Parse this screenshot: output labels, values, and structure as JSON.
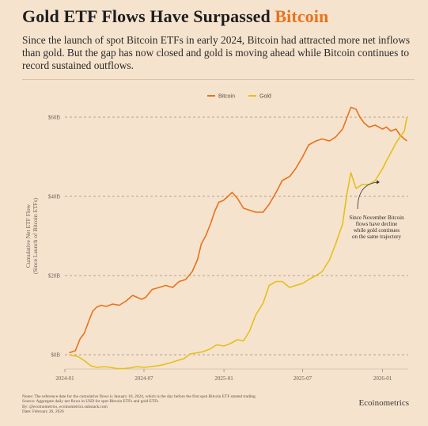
{
  "header": {
    "title_main": "Gold ETF Flows Have Surpassed ",
    "title_accent": "Bitcoin",
    "subtitle": "Since the launch of spot Bitcoin ETFs in early 2024, Bitcoin had attracted more net inflows than gold. But the gap has now closed and gold is moving ahead while Bitcoin continues to record sustained outflows."
  },
  "colors": {
    "bitcoin": "#e8721c",
    "gold": "#e3c01a",
    "background": "#f6e3cd"
  },
  "chart_data": {
    "type": "line",
    "title": "",
    "xlabel": "",
    "ylabel": "Cumulative Net ETF Flow",
    "ylabel2": "(Since Launch of Bitcoin ETFs)",
    "ylim": [
      -4,
      64
    ],
    "yticks": [
      0,
      20,
      40,
      60
    ],
    "ytick_labels": [
      "$0B",
      "$20B",
      "$40B",
      "$60B"
    ],
    "xlim": [
      "2024-01-01",
      "2026-03-01"
    ],
    "xticks": [
      "2024-01-01",
      "2024-07-01",
      "2025-01-01",
      "2025-07-01",
      "2026-01-01"
    ],
    "xtick_labels": [
      "2024-01",
      "2024-07",
      "2025-01",
      "2025-07",
      "2026-01"
    ],
    "grid": "horizontal dashed",
    "legend": "top-center",
    "series": [
      {
        "name": "Bitcoin",
        "color": "#e8721c",
        "x": [
          "2024-01-11",
          "2024-01-25",
          "2024-02-05",
          "2024-02-15",
          "2024-02-25",
          "2024-03-05",
          "2024-03-14",
          "2024-03-25",
          "2024-04-05",
          "2024-04-20",
          "2024-05-05",
          "2024-05-20",
          "2024-06-05",
          "2024-06-15",
          "2024-06-25",
          "2024-07-05",
          "2024-07-20",
          "2024-08-05",
          "2024-08-20",
          "2024-09-05",
          "2024-09-20",
          "2024-10-05",
          "2024-10-20",
          "2024-11-01",
          "2024-11-10",
          "2024-11-20",
          "2024-12-01",
          "2024-12-10",
          "2024-12-20",
          "2024-12-31",
          "2025-01-10",
          "2025-01-20",
          "2025-02-01",
          "2025-02-15",
          "2025-03-01",
          "2025-03-15",
          "2025-04-01",
          "2025-04-15",
          "2025-05-01",
          "2025-05-15",
          "2025-06-01",
          "2025-06-15",
          "2025-07-01",
          "2025-07-15",
          "2025-08-01",
          "2025-08-15",
          "2025-09-01",
          "2025-09-15",
          "2025-10-01",
          "2025-10-08",
          "2025-10-20",
          "2025-11-01",
          "2025-11-10",
          "2025-11-20",
          "2025-12-01",
          "2025-12-15",
          "2026-01-01",
          "2026-01-10",
          "2026-01-20",
          "2026-02-01",
          "2026-02-10",
          "2026-02-20",
          "2026-02-26"
        ],
        "y": [
          0.5,
          1.0,
          4.0,
          5.5,
          8.5,
          11,
          12.0,
          12.5,
          12.2,
          12.8,
          12.5,
          13.5,
          15.0,
          14.5,
          14.0,
          14.5,
          16.5,
          17.0,
          17.5,
          17.0,
          18.5,
          19.0,
          21.0,
          24.0,
          28.0,
          30.0,
          33.0,
          36.0,
          38.5,
          39.0,
          40.0,
          41.0,
          39.5,
          37.0,
          36.5,
          36.0,
          36.0,
          38.0,
          41.0,
          44.0,
          45.0,
          47.0,
          50.0,
          53.0,
          54.0,
          54.5,
          54.0,
          55.0,
          57.0,
          59.0,
          62.5,
          62.0,
          60.0,
          58.5,
          57.5,
          58.0,
          57.0,
          57.5,
          56.5,
          57.0,
          55.5,
          54.5,
          54.0
        ]
      },
      {
        "name": "Gold",
        "color": "#e3c01a",
        "x": [
          "2024-01-11",
          "2024-02-01",
          "2024-02-15",
          "2024-03-01",
          "2024-03-15",
          "2024-04-01",
          "2024-04-15",
          "2024-05-01",
          "2024-05-15",
          "2024-06-01",
          "2024-06-15",
          "2024-07-01",
          "2024-07-15",
          "2024-08-01",
          "2024-08-15",
          "2024-09-01",
          "2024-09-15",
          "2024-10-01",
          "2024-10-15",
          "2024-11-01",
          "2024-11-15",
          "2024-12-01",
          "2024-12-15",
          "2025-01-01",
          "2025-01-15",
          "2025-02-01",
          "2025-02-15",
          "2025-03-01",
          "2025-03-15",
          "2025-04-01",
          "2025-04-15",
          "2025-05-01",
          "2025-05-15",
          "2025-06-01",
          "2025-06-15",
          "2025-07-01",
          "2025-07-15",
          "2025-08-01",
          "2025-08-15",
          "2025-09-01",
          "2025-09-15",
          "2025-10-01",
          "2025-10-10",
          "2025-10-20",
          "2025-11-01",
          "2025-11-15",
          "2025-12-01",
          "2025-12-15",
          "2026-01-01",
          "2026-01-10",
          "2026-01-20",
          "2026-02-01",
          "2026-02-10",
          "2026-02-20",
          "2026-02-26"
        ],
        "y": [
          0.0,
          -0.5,
          -1.5,
          -2.8,
          -3.2,
          -3.0,
          -3.2,
          -3.5,
          -3.5,
          -3.3,
          -3.0,
          -3.2,
          -3.0,
          -2.8,
          -2.5,
          -2.0,
          -1.5,
          -1.0,
          0.2,
          0.5,
          0.8,
          1.5,
          2.5,
          2.2,
          2.8,
          3.8,
          3.5,
          6.0,
          10.0,
          13.0,
          17.5,
          18.5,
          18.5,
          17.0,
          17.5,
          18.0,
          19.0,
          20.0,
          21.0,
          24.0,
          28.0,
          33.0,
          40.0,
          46.0,
          42.0,
          43.0,
          43.0,
          44.0,
          47.0,
          49.0,
          51.0,
          53.5,
          55.0,
          56.5,
          60.0
        ]
      }
    ],
    "annotations": [
      {
        "text": "Since November Bitcoin flows have decline while gold continues on the same trajectory"
      }
    ]
  },
  "footer": {
    "notes": [
      "Notes: The reference date for the cumulative flows is January 10, 2024, which is the day before the first spot Bitcoin ETF started trading.",
      "Source: Aggregate daily net flows in USD for spot Bitcoin ETFs and gold ETFs",
      "By: @ecoinometrics, ecoinometrics.substack.com",
      "Date: February 26, 2026"
    ],
    "brand": "Ecoinometrics"
  }
}
